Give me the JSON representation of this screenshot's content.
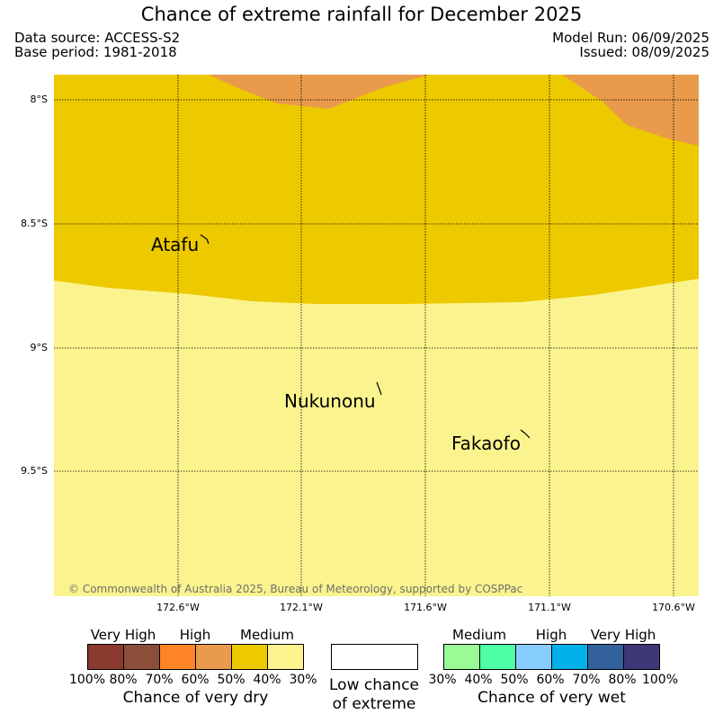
{
  "header": {
    "title": "Chance of extreme rainfall for December 2025",
    "data_source": "Data source: ACCESS-S2",
    "base_period": "Base period: 1981-2018",
    "model_run": "Model Run: 06/09/2025",
    "issued": "Issued: 08/09/2025"
  },
  "map": {
    "lat_labels": [
      "8°S",
      "8.5°S",
      "9°S",
      "9.5°S"
    ],
    "lon_labels": [
      "172.6°W",
      "172.1°W",
      "171.6°W",
      "171.1°W",
      "170.6°W"
    ],
    "places": [
      "Atafu",
      "Nukunonu",
      "Fakaofo"
    ],
    "copyright": "© Commonwealth of Australia 2025, Bureau of Meteorology, supported by COSPPac",
    "colors": {
      "very_dry_50_70": "#e99b4b",
      "dry_40_50": "#edc900",
      "dry_30_40": "#fbf48e"
    }
  },
  "legend": {
    "dry": {
      "headers": [
        "Very High",
        "High",
        "Medium"
      ],
      "ticks": [
        "100%",
        "80%",
        "70%",
        "60%",
        "50%",
        "40%",
        "30%"
      ],
      "colors": [
        "#8a3a2e",
        "#8b4e3a",
        "#ff8527",
        "#e99b4b",
        "#edc900",
        "#fbf48e"
      ],
      "title": "Chance of very dry"
    },
    "low": {
      "title_line1": "Low chance",
      "title_line2": "of extreme"
    },
    "wet": {
      "headers": [
        "Medium",
        "High",
        "Very High"
      ],
      "ticks": [
        "30%",
        "40%",
        "50%",
        "60%",
        "70%",
        "80%",
        "100%"
      ],
      "colors": [
        "#9afb96",
        "#4dffa5",
        "#87cdfe",
        "#00b1ea",
        "#33619b",
        "#3d3776"
      ],
      "title": "Chance of very wet"
    }
  }
}
